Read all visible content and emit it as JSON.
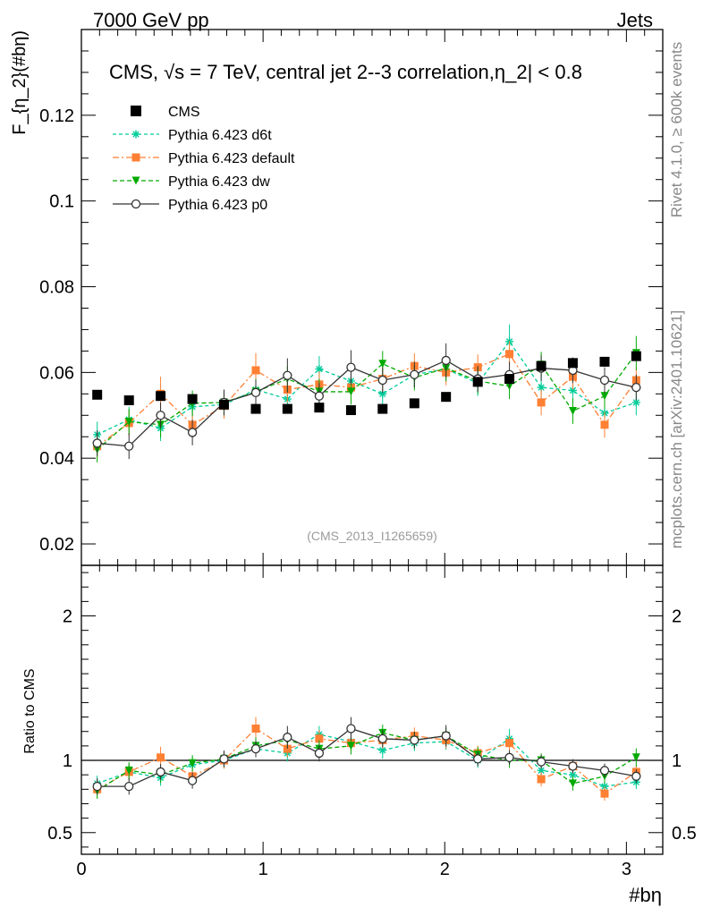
{
  "header": {
    "left": "7000 GeV pp",
    "right": "Jets"
  },
  "side": {
    "top": "Rivet 4.1.0, ≥ 600k events",
    "bottom": "mcplots.cern.ch [arXiv:2401.10621]"
  },
  "chart_data": {
    "type": "line",
    "title": "CMS, √s = 7 TeV, central jet 2--3 correlation,η_2| < 0.8",
    "analysis_tag": "(CMS_2013_I1265659)",
    "xlabel": "#bη",
    "ylabel": "F_{η_2}(#bη)",
    "ratio_ylabel": "Ratio to CMS",
    "xlim": [
      0,
      3.2
    ],
    "ylim": [
      0.015,
      0.14
    ],
    "ratio_ylim": [
      0.35,
      2.35
    ],
    "x_ticks": [
      "0",
      "1",
      "2",
      "3"
    ],
    "y_ticks": [
      "0.02",
      "0.04",
      "0.06",
      "0.08",
      "0.1",
      "0.12"
    ],
    "ratio_ticks": [
      "0.5",
      "1",
      "2"
    ],
    "x": [
      0.087,
      0.262,
      0.436,
      0.611,
      0.785,
      0.96,
      1.134,
      1.309,
      1.484,
      1.658,
      1.833,
      2.007,
      2.182,
      2.356,
      2.531,
      2.705,
      2.88,
      3.054
    ],
    "reference": {
      "name": "CMS",
      "color": "#000000",
      "values": [
        0.0548,
        0.0535,
        0.0545,
        0.0538,
        0.0525,
        0.0515,
        0.0515,
        0.0518,
        0.0512,
        0.0515,
        0.0528,
        0.0543,
        0.0578,
        0.0585,
        0.0615,
        0.0622,
        0.0625,
        0.0638
      ]
    },
    "series": [
      {
        "name": "Pythia 6.423 d6t",
        "color": "#00cc99",
        "marker": "star",
        "dash": "4,3",
        "values": [
          0.0455,
          0.049,
          0.047,
          0.052,
          0.0525,
          0.056,
          0.0538,
          0.0608,
          0.058,
          0.055,
          0.0595,
          0.0608,
          0.0575,
          0.0672,
          0.0565,
          0.0558,
          0.0505,
          0.053
        ],
        "errors": [
          0.003,
          0.003,
          0.003,
          0.003,
          0.003,
          0.003,
          0.003,
          0.003,
          0.003,
          0.003,
          0.003,
          0.003,
          0.003,
          0.004,
          0.003,
          0.003,
          0.003,
          0.003
        ],
        "ratio": [
          0.84,
          0.92,
          0.88,
          0.97,
          1.0,
          1.08,
          1.05,
          1.18,
          1.13,
          1.07,
          1.12,
          1.13,
          1.0,
          1.15,
          0.93,
          0.9,
          0.82,
          0.85
        ]
      },
      {
        "name": "Pythia 6.423 default",
        "color": "#ff7f33",
        "marker": "square",
        "dash": "7,3,2,3",
        "values": [
          0.0428,
          0.0482,
          0.055,
          0.0478,
          0.0522,
          0.0605,
          0.056,
          0.0572,
          0.0565,
          0.0585,
          0.0615,
          0.06,
          0.0612,
          0.0643,
          0.053,
          0.059,
          0.0478,
          0.0582
        ],
        "errors": [
          0.003,
          0.003,
          0.004,
          0.003,
          0.003,
          0.004,
          0.003,
          0.003,
          0.003,
          0.003,
          0.003,
          0.003,
          0.003,
          0.003,
          0.003,
          0.003,
          0.003,
          0.003
        ],
        "ratio": [
          0.8,
          0.92,
          1.02,
          0.89,
          1.0,
          1.22,
          1.08,
          1.15,
          1.12,
          1.14,
          1.17,
          1.14,
          1.05,
          1.12,
          0.87,
          0.96,
          0.77,
          0.92
        ]
      },
      {
        "name": "Pythia 6.423 dw",
        "color": "#00aa00",
        "marker": "triangle-down",
        "dash": "5,3",
        "values": [
          0.042,
          0.0485,
          0.0478,
          0.0528,
          0.053,
          0.0555,
          0.0585,
          0.0555,
          0.0555,
          0.062,
          0.0588,
          0.061,
          0.058,
          0.0568,
          0.0618,
          0.051,
          0.0545,
          0.0645
        ],
        "errors": [
          0.003,
          0.003,
          0.003,
          0.003,
          0.003,
          0.003,
          0.003,
          0.003,
          0.003,
          0.003,
          0.003,
          0.003,
          0.003,
          0.003,
          0.003,
          0.003,
          0.003,
          0.004
        ],
        "ratio": [
          0.79,
          0.93,
          0.9,
          0.98,
          1.01,
          1.1,
          1.14,
          1.08,
          1.1,
          1.19,
          1.14,
          1.17,
          1.04,
          1.0,
          1.0,
          0.84,
          0.89,
          1.02
        ]
      },
      {
        "name": "Pythia 6.423 p0",
        "color": "#333333",
        "marker": "circle-open",
        "dash": "",
        "values": [
          0.0435,
          0.0428,
          0.05,
          0.046,
          0.053,
          0.0553,
          0.0593,
          0.0545,
          0.0612,
          0.0582,
          0.0595,
          0.0628,
          0.0585,
          0.0595,
          0.061,
          0.0605,
          0.0582,
          0.0565
        ],
        "errors": [
          0.003,
          0.003,
          0.003,
          0.003,
          0.003,
          0.003,
          0.004,
          0.003,
          0.004,
          0.003,
          0.003,
          0.004,
          0.003,
          0.003,
          0.003,
          0.003,
          0.003,
          0.003
        ],
        "ratio": [
          0.82,
          0.82,
          0.92,
          0.86,
          1.01,
          1.08,
          1.16,
          1.05,
          1.22,
          1.15,
          1.14,
          1.17,
          1.01,
          1.02,
          0.99,
          0.96,
          0.93,
          0.89
        ]
      }
    ]
  }
}
